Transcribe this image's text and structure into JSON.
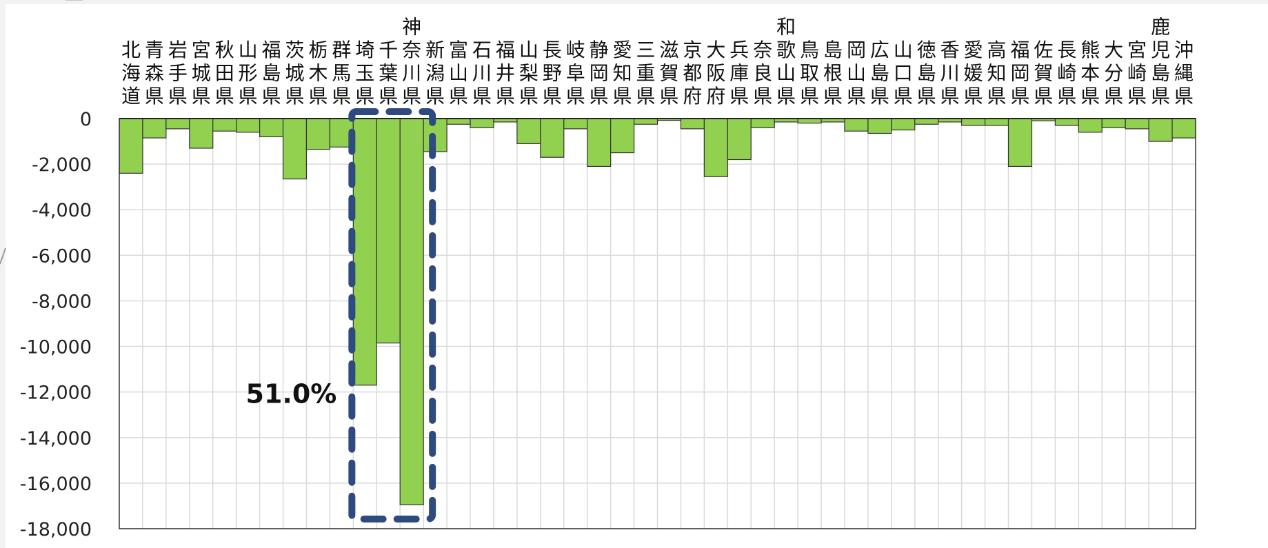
{
  "chart_data": {
    "type": "bar",
    "categories": [
      "北海道",
      "青森県",
      "岩手県",
      "宮城県",
      "秋田県",
      "山形県",
      "福島県",
      "茨城県",
      "栃木県",
      "群馬県",
      "埼玉県",
      "千葉県",
      "神奈川県",
      "新潟県",
      "富山県",
      "石川県",
      "福井県",
      "山梨県",
      "長野県",
      "岐阜県",
      "静岡県",
      "愛知県",
      "三重県",
      "滋賀県",
      "京都府",
      "大阪府",
      "兵庫県",
      "奈良県",
      "和歌山県",
      "鳥取県",
      "島根県",
      "岡山県",
      "広島県",
      "山口県",
      "徳島県",
      "香川県",
      "愛媛県",
      "高知県",
      "福岡県",
      "佐賀県",
      "長崎県",
      "熊本県",
      "大分県",
      "宮崎県",
      "鹿児島県",
      "沖縄県"
    ],
    "values": [
      -2400,
      -850,
      -450,
      -1300,
      -550,
      -600,
      -800,
      -2650,
      -1350,
      -1250,
      -11700,
      -9850,
      -16950,
      -1450,
      -250,
      -400,
      -150,
      -1100,
      -1700,
      -450,
      -2100,
      -1500,
      -250,
      -80,
      -450,
      -2550,
      -1800,
      -400,
      -150,
      -200,
      -150,
      -550,
      -650,
      -500,
      -250,
      -150,
      -300,
      -300,
      -2100,
      -100,
      -300,
      -600,
      -400,
      -450,
      -1000,
      -850
    ],
    "ylim": [
      -18000,
      0
    ],
    "yticks": [
      0,
      -2000,
      -4000,
      -6000,
      -8000,
      -10000,
      -12000,
      -14000,
      -16000,
      -18000
    ],
    "ytick_labels": [
      "0",
      "-2,000",
      "-4,000",
      "-6,000",
      "-8,000",
      "-10,000",
      "-12,000",
      "-14,000",
      "-16,000",
      "-18,000"
    ],
    "grid": true,
    "bar_color": "#92d050",
    "bar_edge_color": "#333333",
    "highlight": {
      "categories": [
        "埼玉県",
        "千葉県",
        "神奈川県"
      ],
      "label": "51.0%",
      "color": "#2f4a7f"
    },
    "title": "",
    "xlabel": "",
    "ylabel": ""
  }
}
